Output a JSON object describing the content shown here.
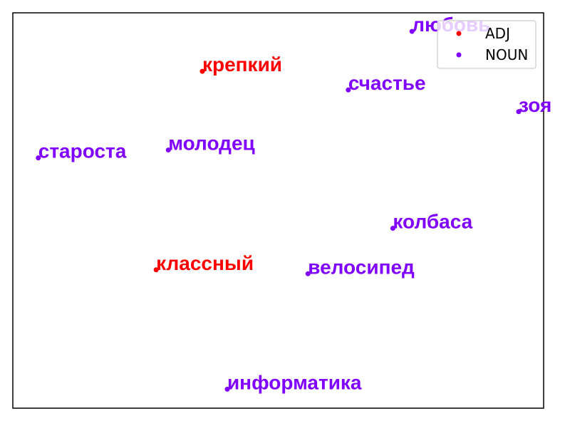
{
  "chart_data": {
    "type": "scatter",
    "title": "",
    "xlabel": "",
    "ylabel": "",
    "xlim": [
      0,
      100
    ],
    "ylim": [
      0,
      100
    ],
    "grid": false,
    "axes_ticks": false,
    "legend": {
      "placement": "top-right",
      "entries": [
        {
          "label": "ADJ",
          "color": "#ff0000"
        },
        {
          "label": "NOUN",
          "color": "#8000ff"
        }
      ]
    },
    "series": [
      {
        "name": "ADJ",
        "color": "#ff0000",
        "points": [
          {
            "label": "крепкий",
            "x": 35.7,
            "y": 85.2
          },
          {
            "label": "классный",
            "x": 27.0,
            "y": 35.0
          }
        ]
      },
      {
        "name": "NOUN",
        "color": "#8000ff",
        "points": [
          {
            "label": "любовь",
            "x": 75.2,
            "y": 95.3
          },
          {
            "label": "счастье",
            "x": 63.2,
            "y": 80.5
          },
          {
            "label": "зоя",
            "x": 95.3,
            "y": 75.0
          },
          {
            "label": "староста",
            "x": 4.8,
            "y": 63.3
          },
          {
            "label": "молодец",
            "x": 29.3,
            "y": 65.3
          },
          {
            "label": "колбаса",
            "x": 71.6,
            "y": 45.5
          },
          {
            "label": "велосипед",
            "x": 55.6,
            "y": 34.0
          },
          {
            "label": "информатика",
            "x": 40.4,
            "y": 4.8
          }
        ]
      }
    ]
  }
}
